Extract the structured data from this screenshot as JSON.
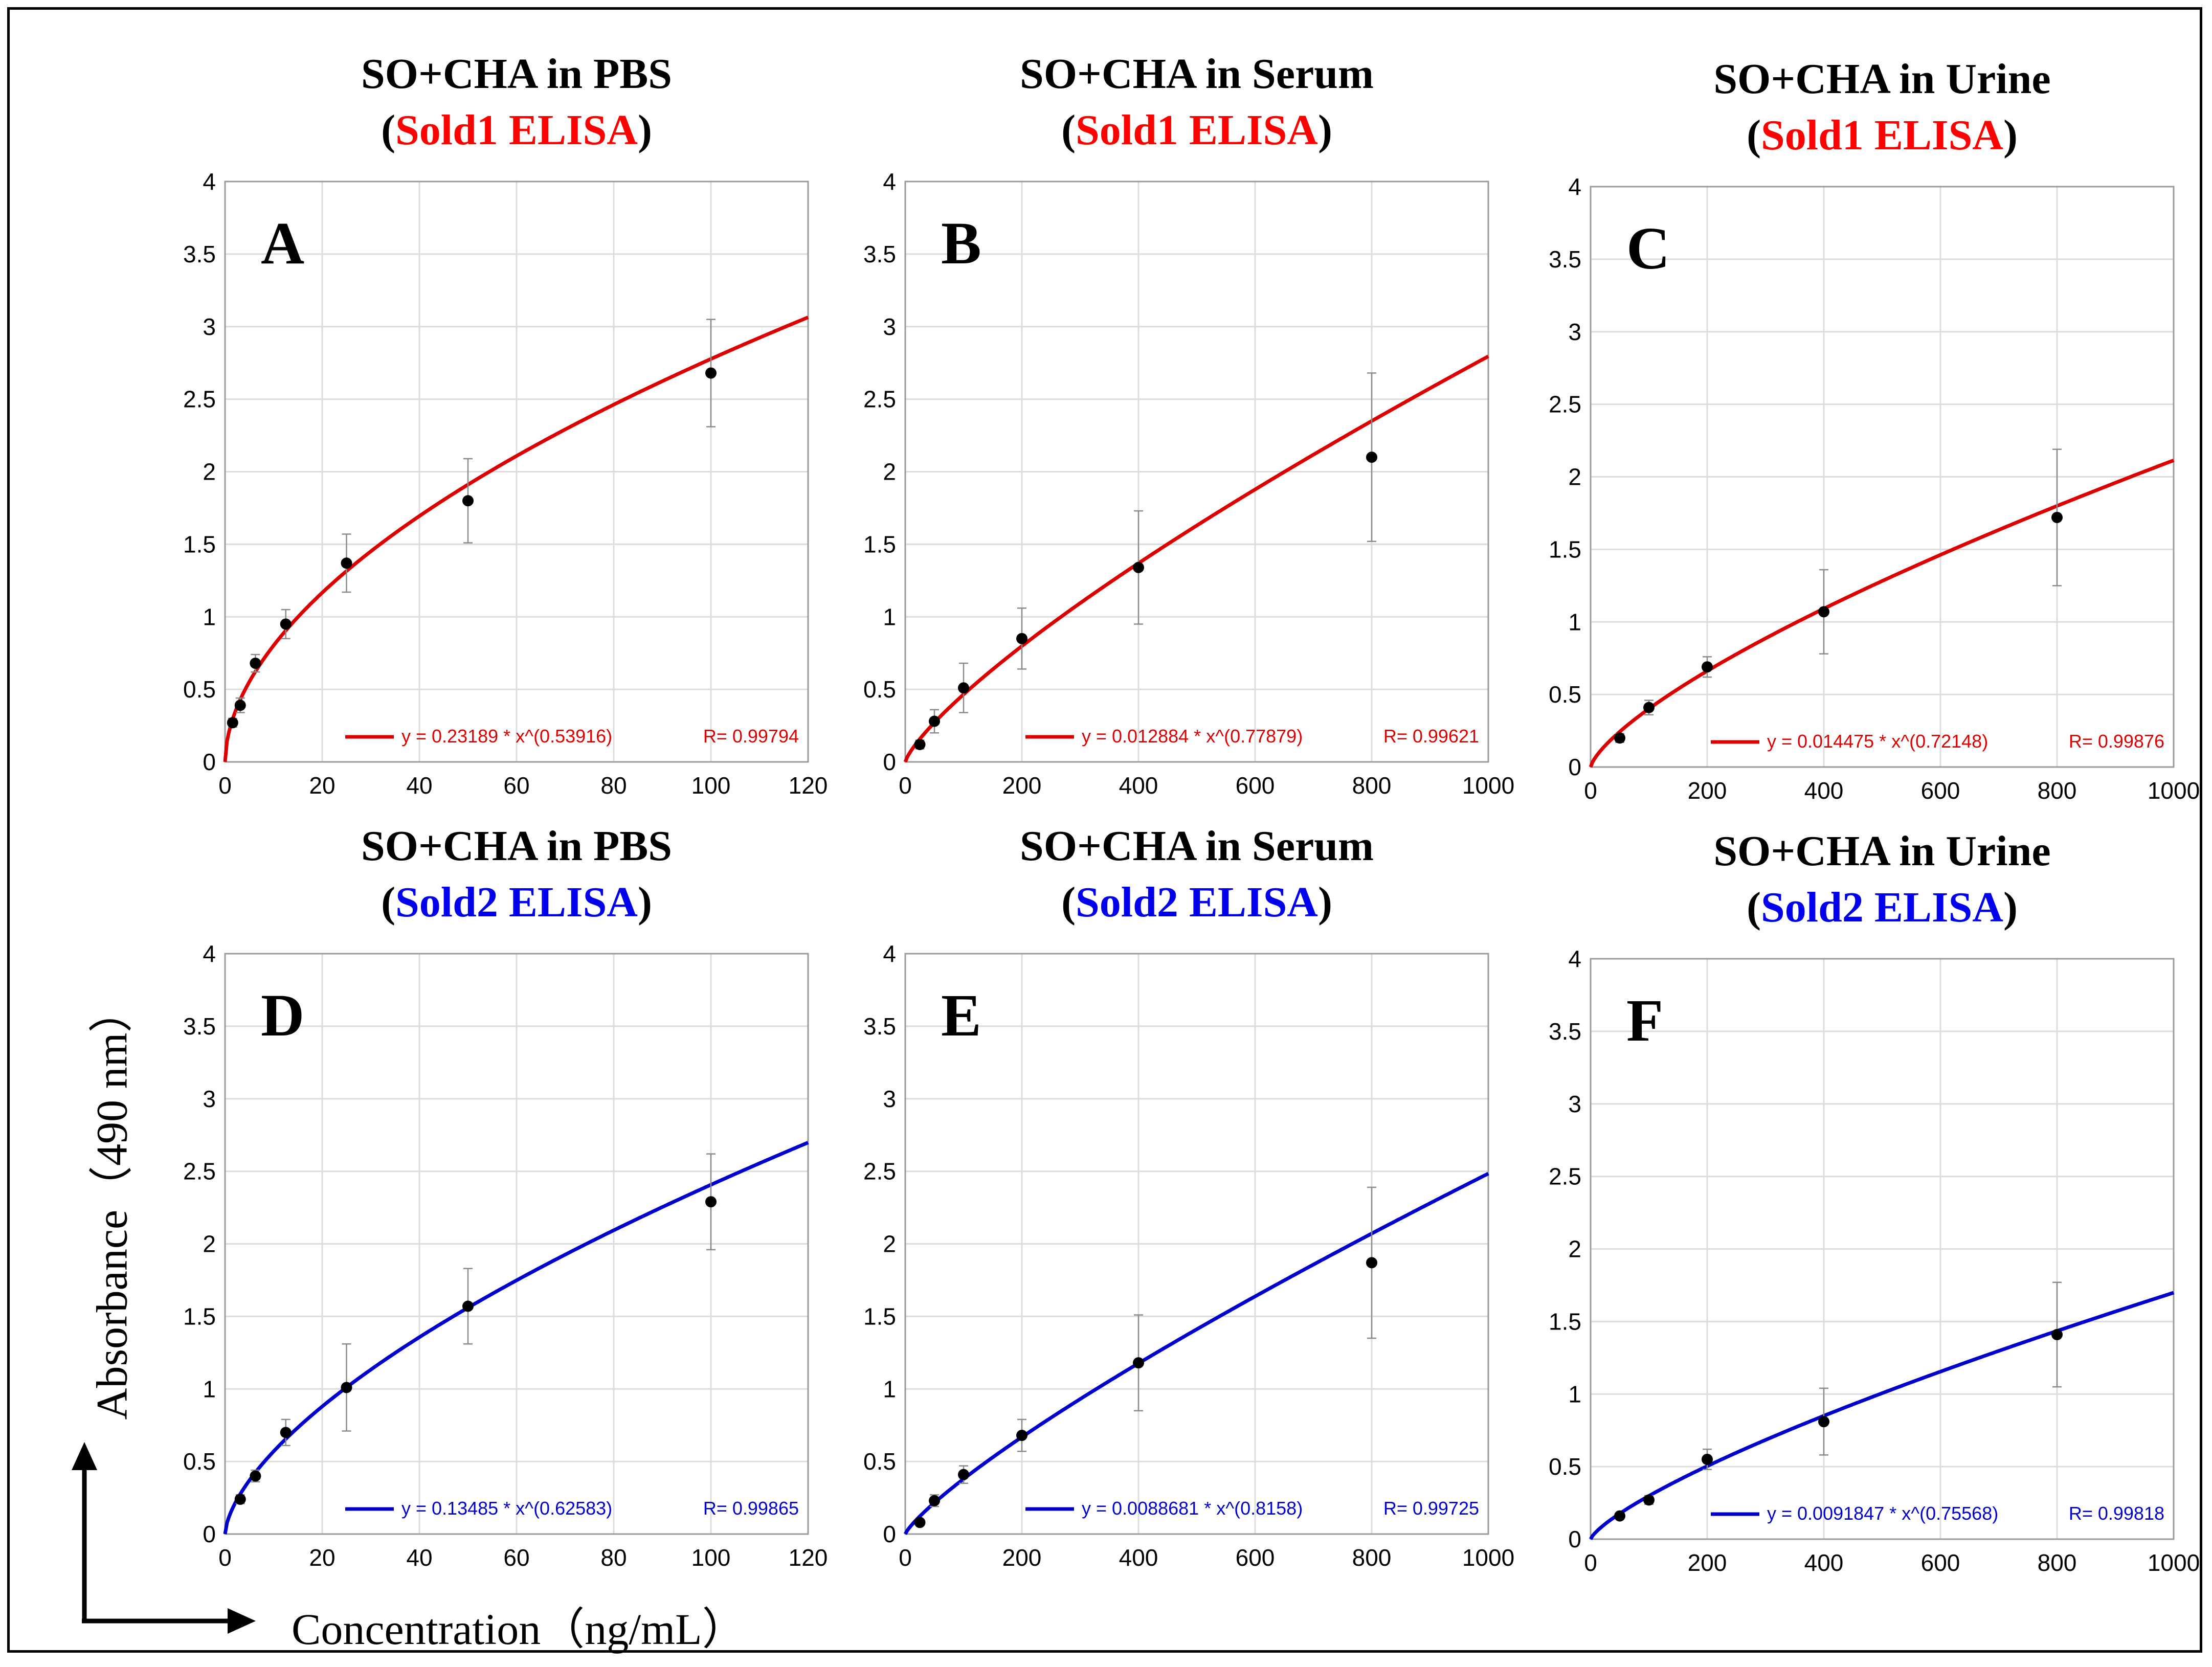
{
  "figure": {
    "y_axis_label": "Absorbance（490 nm）",
    "x_axis_label": "Concentration（ng/mL）"
  },
  "chart_data": [
    {
      "type": "scatter",
      "panel_letter": "A",
      "title": "SO+CHA in PBS",
      "subtitle_open": "(",
      "subtitle": "Sold1 ELISA",
      "subtitle_close": ")",
      "subtitle_color": "#ff0000",
      "curve_color": "#dd0000",
      "fit": {
        "a": 0.23189,
        "b": 0.53916
      },
      "equation": "y = 0.23189 * x^(0.53916)",
      "r_label": "R= 0.99794",
      "xlim": [
        0,
        120
      ],
      "ylim": [
        0,
        4
      ],
      "xticks": [
        0,
        20,
        40,
        60,
        80,
        100,
        120
      ],
      "yticks": [
        0,
        0.5,
        1,
        1.5,
        2,
        2.5,
        3,
        3.5,
        4
      ],
      "x": [
        1.56,
        3.13,
        6.25,
        12.5,
        25,
        50,
        100
      ],
      "y": [
        0.27,
        0.39,
        0.68,
        0.95,
        1.37,
        1.8,
        2.68
      ],
      "errors": [
        0.03,
        0.05,
        0.06,
        0.1,
        0.2,
        0.29,
        0.37
      ]
    },
    {
      "type": "scatter",
      "panel_letter": "B",
      "title": "SO+CHA in Serum",
      "subtitle_open": "(",
      "subtitle": "Sold1 ELISA",
      "subtitle_close": ")",
      "subtitle_color": "#ff0000",
      "curve_color": "#dd0000",
      "fit": {
        "a": 0.012884,
        "b": 0.77879
      },
      "equation": "y = 0.012884 * x^(0.77879)",
      "r_label": "R= 0.99621",
      "xlim": [
        0,
        1000
      ],
      "ylim": [
        0,
        4
      ],
      "xticks": [
        0,
        200,
        400,
        600,
        800,
        1000
      ],
      "yticks": [
        0,
        0.5,
        1,
        1.5,
        2,
        2.5,
        3,
        3.5,
        4
      ],
      "x": [
        25,
        50,
        100,
        200,
        400,
        800
      ],
      "y": [
        0.12,
        0.28,
        0.51,
        0.85,
        1.34,
        2.1
      ],
      "errors": [
        0.03,
        0.08,
        0.17,
        0.21,
        0.39,
        0.58
      ]
    },
    {
      "type": "scatter",
      "panel_letter": "C",
      "title": "SO+CHA in Urine",
      "subtitle_open": "(",
      "subtitle": "Sold1 ELISA",
      "subtitle_close": ")",
      "subtitle_color": "#ff0000",
      "curve_color": "#dd0000",
      "fit": {
        "a": 0.014475,
        "b": 0.72148
      },
      "equation": "y = 0.014475 * x^(0.72148)",
      "r_label": "R= 0.99876",
      "xlim": [
        0,
        1000
      ],
      "ylim": [
        0,
        4
      ],
      "xticks": [
        0,
        200,
        400,
        600,
        800,
        1000
      ],
      "yticks": [
        0,
        0.5,
        1,
        1.5,
        2,
        2.5,
        3,
        3.5,
        4
      ],
      "x": [
        50,
        100,
        200,
        400,
        800
      ],
      "y": [
        0.2,
        0.41,
        0.69,
        1.07,
        1.72
      ],
      "errors": [
        0.03,
        0.05,
        0.07,
        0.29,
        0.47
      ]
    },
    {
      "type": "scatter",
      "panel_letter": "D",
      "title": "SO+CHA in PBS",
      "subtitle_open": "(",
      "subtitle": "Sold2 ELISA",
      "subtitle_close": ")",
      "subtitle_color": "#0000ee",
      "curve_color": "#0000cc",
      "fit": {
        "a": 0.13485,
        "b": 0.62583
      },
      "equation": "y = 0.13485 * x^(0.62583)",
      "r_label": "R= 0.99865",
      "xlim": [
        0,
        120
      ],
      "ylim": [
        0,
        4
      ],
      "xticks": [
        0,
        20,
        40,
        60,
        80,
        100,
        120
      ],
      "yticks": [
        0,
        0.5,
        1,
        1.5,
        2,
        2.5,
        3,
        3.5,
        4
      ],
      "x": [
        3.13,
        6.25,
        12.5,
        25,
        50,
        100
      ],
      "y": [
        0.24,
        0.4,
        0.7,
        1.01,
        1.57,
        2.29
      ],
      "errors": [
        0.03,
        0.04,
        0.09,
        0.3,
        0.26,
        0.33
      ]
    },
    {
      "type": "scatter",
      "panel_letter": "E",
      "title": "SO+CHA in Serum",
      "subtitle_open": "(",
      "subtitle": "Sold2 ELISA",
      "subtitle_close": ")",
      "subtitle_color": "#0000ee",
      "curve_color": "#0000cc",
      "fit": {
        "a": 0.0088681,
        "b": 0.8158
      },
      "equation": "y = 0.0088681 * x^(0.8158)",
      "r_label": "R= 0.99725",
      "xlim": [
        0,
        1000
      ],
      "ylim": [
        0,
        4
      ],
      "xticks": [
        0,
        200,
        400,
        600,
        800,
        1000
      ],
      "yticks": [
        0,
        0.5,
        1,
        1.5,
        2,
        2.5,
        3,
        3.5,
        4
      ],
      "x": [
        25,
        50,
        100,
        200,
        400,
        800
      ],
      "y": [
        0.08,
        0.23,
        0.41,
        0.68,
        1.18,
        1.87
      ],
      "errors": [
        0.02,
        0.04,
        0.06,
        0.11,
        0.33,
        0.52
      ]
    },
    {
      "type": "scatter",
      "panel_letter": "F",
      "title": "SO+CHA in Urine",
      "subtitle_open": "(",
      "subtitle": "Sold2 ELISA",
      "subtitle_close": ")",
      "subtitle_color": "#0000ee",
      "curve_color": "#0000cc",
      "fit": {
        "a": 0.0091847,
        "b": 0.75568
      },
      "equation": "y = 0.0091847 * x^(0.75568)",
      "r_label": "R= 0.99818",
      "xlim": [
        0,
        1000
      ],
      "ylim": [
        0,
        4
      ],
      "xticks": [
        0,
        200,
        400,
        600,
        800,
        1000
      ],
      "yticks": [
        0,
        0.5,
        1,
        1.5,
        2,
        2.5,
        3,
        3.5,
        4
      ],
      "x": [
        50,
        100,
        200,
        400,
        800
      ],
      "y": [
        0.16,
        0.27,
        0.55,
        0.81,
        1.41
      ],
      "errors": [
        0.02,
        0.03,
        0.07,
        0.23,
        0.36
      ]
    }
  ]
}
